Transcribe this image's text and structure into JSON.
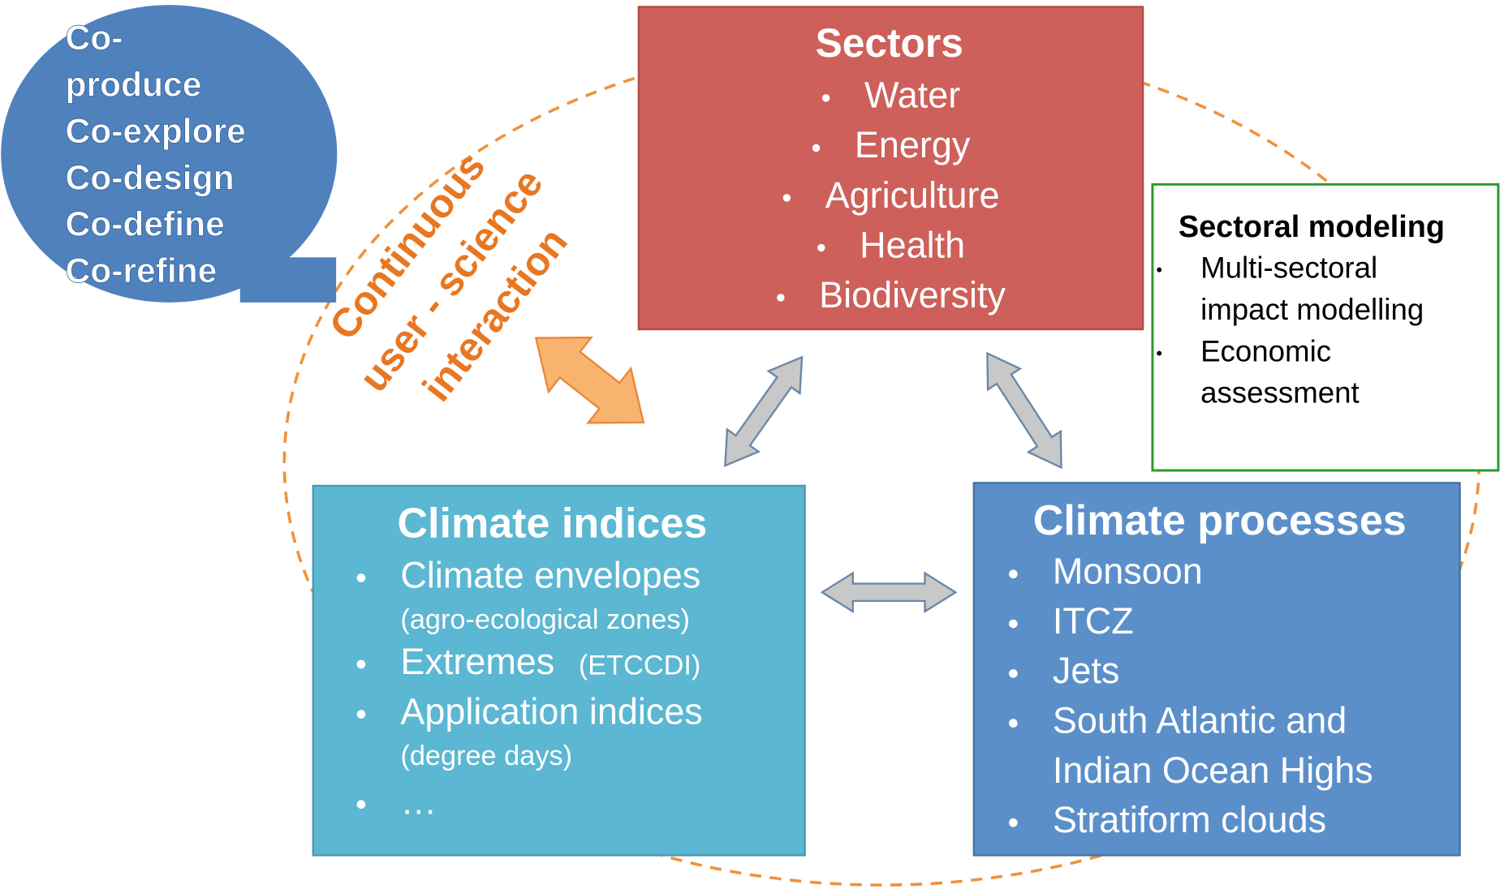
{
  "bubble": {
    "lines": [
      "Co-",
      "produce",
      "Co-explore",
      "Co-design",
      "Co-define",
      "Co-refine"
    ]
  },
  "interaction_label": {
    "lines": [
      "Continuous",
      "user - science",
      "interaction"
    ]
  },
  "sectors": {
    "title": "Sectors",
    "items": [
      "Water",
      "Energy",
      "Agriculture",
      "Health",
      "Biodiversity"
    ]
  },
  "sectoral_modeling": {
    "title": "Sectoral modeling",
    "items": [
      [
        "Multi-sectoral",
        "impact modelling"
      ],
      [
        "Economic",
        "assessment"
      ]
    ]
  },
  "climate_indices": {
    "title": "Climate indices",
    "items": [
      {
        "text": "Climate envelopes",
        "note": "(agro-ecological zones)"
      },
      {
        "text": "Extremes",
        "note": "(ETCCDI)"
      },
      {
        "text": "Application indices",
        "note": "(degree days)"
      },
      {
        "text": "…"
      }
    ]
  },
  "climate_processes": {
    "title": "Climate processes",
    "items": [
      [
        "Monsoon"
      ],
      [
        "ITCZ"
      ],
      [
        "Jets"
      ],
      [
        "South Atlantic and",
        "Indian Ocean Highs"
      ],
      [
        "Stratiform clouds"
      ]
    ]
  }
}
